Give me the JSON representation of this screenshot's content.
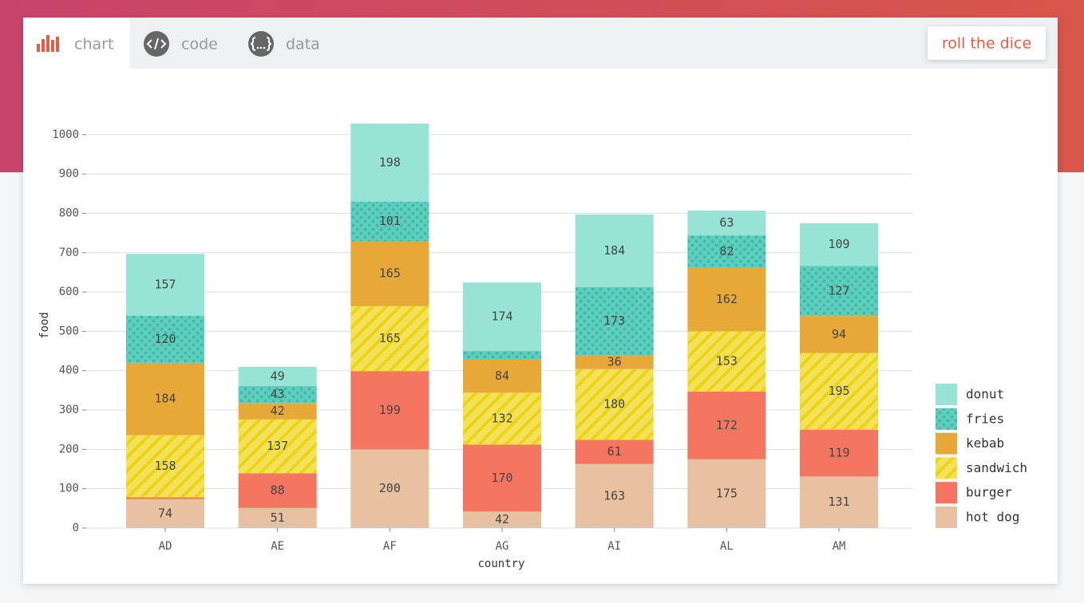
{
  "tabs": [
    "chart",
    "code",
    "data"
  ],
  "button": "roll the dice",
  "chart_data": {
    "type": "bar",
    "stacked": true,
    "x_label": "country",
    "y_label": "food",
    "categories": [
      "AD",
      "AE",
      "AF",
      "AG",
      "AI",
      "AL",
      "AM"
    ],
    "series": [
      {
        "name": "hot dog",
        "color": "#e8c1a0",
        "values": [
          74,
          51,
          200,
          42,
          163,
          175,
          131
        ]
      },
      {
        "name": "burger",
        "color": "#f47560",
        "values": [
          4,
          88,
          199,
          170,
          61,
          172,
          119
        ]
      },
      {
        "name": "sandwich",
        "color": "#f1e15b",
        "pattern": "lines",
        "pattern_color": "#eed312",
        "values": [
          158,
          137,
          165,
          132,
          180,
          153,
          195
        ]
      },
      {
        "name": "kebab",
        "color": "#e8a838",
        "values": [
          184,
          42,
          165,
          84,
          36,
          162,
          94
        ]
      },
      {
        "name": "fries",
        "color": "#61cdbb",
        "pattern": "dots",
        "pattern_color": "#38bcb2",
        "values": [
          120,
          43,
          101,
          22,
          173,
          82,
          127
        ]
      },
      {
        "name": "donut",
        "color": "#97e3d5",
        "values": [
          157,
          49,
          198,
          174,
          184,
          63,
          109
        ]
      }
    ],
    "ylim": [
      0,
      1028
    ],
    "yticks": [
      0,
      100,
      200,
      300,
      400,
      500,
      600,
      700,
      800,
      900,
      1000
    ],
    "grid": true,
    "legend": "right"
  }
}
